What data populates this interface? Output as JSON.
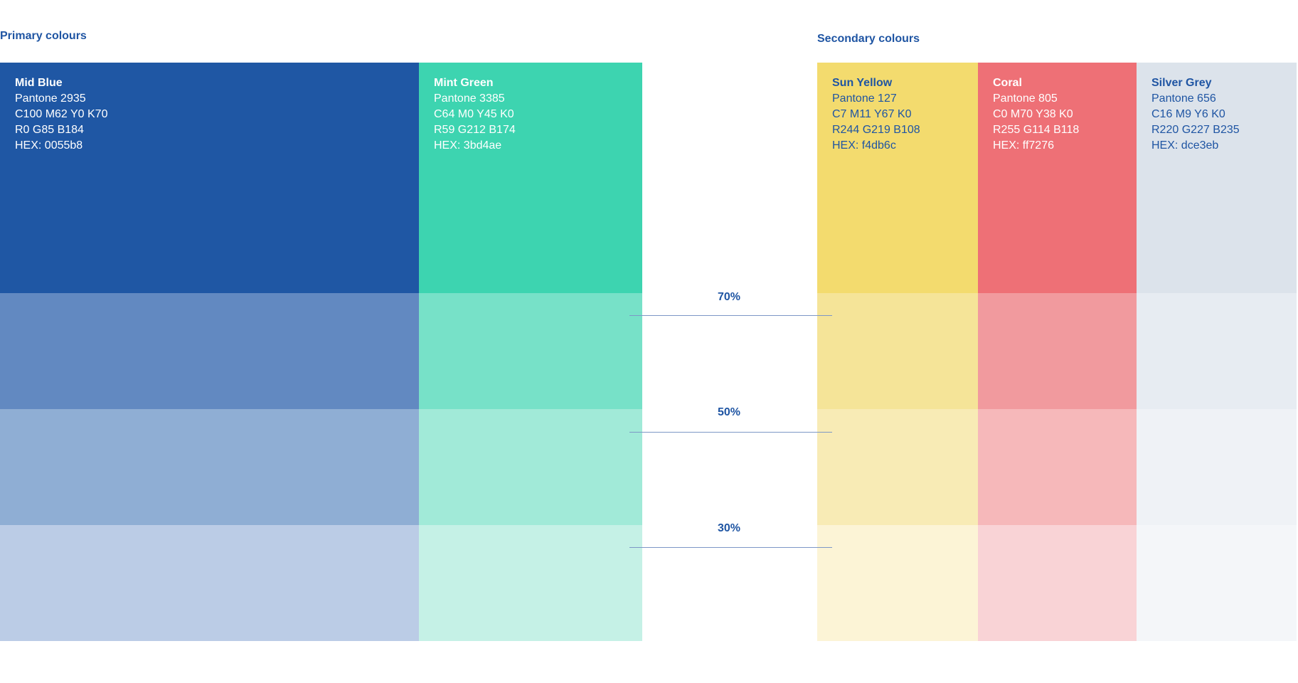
{
  "headings": {
    "primary": "Primary colours",
    "secondary": "Secondary colours"
  },
  "tints": {
    "t70": "70%",
    "t50": "50%",
    "t30": "30%"
  },
  "swatches": {
    "mid_blue": {
      "name": "Mid Blue",
      "pantone": "Pantone 2935",
      "cmyk": "C100 M62 Y0 K70",
      "rgb": "R0 G85 B184",
      "hex": "HEX: 0055b8",
      "colors": {
        "solid": "#1f57a4",
        "t70": "#6289c1",
        "t50": "#8faed4",
        "t30": "#bbcce6"
      }
    },
    "mint_green": {
      "name": "Mint Green",
      "pantone": "Pantone 3385",
      "cmyk": "C64 M0 Y45 K0",
      "rgb": "R59 G212 B174",
      "hex": "HEX: 3bd4ae",
      "colors": {
        "solid": "#3dd4b0",
        "t70": "#77e1c8",
        "t50": "#a1ead8",
        "t30": "#c5f1e6"
      }
    },
    "sun_yellow": {
      "name": "Sun Yellow",
      "pantone": "Pantone 127",
      "cmyk": "C7 M11 Y67 K0",
      "rgb": "R244 G219 B108",
      "hex": "HEX: f4db6c",
      "colors": {
        "solid": "#f3db6e",
        "t70": "#f5e498",
        "t50": "#f8ebb5",
        "t30": "#fcf4d6"
      }
    },
    "coral": {
      "name": "Coral",
      "pantone": "Pantone 805",
      "cmyk": "C0 M70 Y38 K0",
      "rgb": "R255 G114 B118",
      "hex": "HEX: ff7276",
      "colors": {
        "solid": "#ee7076",
        "t70": "#f19a9e",
        "t50": "#f6b8ba",
        "t30": "#f9d3d6"
      }
    },
    "silver_grey": {
      "name": "Silver Grey",
      "pantone": "Pantone 656",
      "cmyk": "C16 M9 Y6 K0",
      "rgb": "R220 G227 B235",
      "hex": "HEX: dce3eb",
      "colors": {
        "solid": "#dce3eb",
        "t70": "#e7ecf2",
        "t50": "#eff2f6",
        "t30": "#f4f6f9"
      }
    }
  }
}
